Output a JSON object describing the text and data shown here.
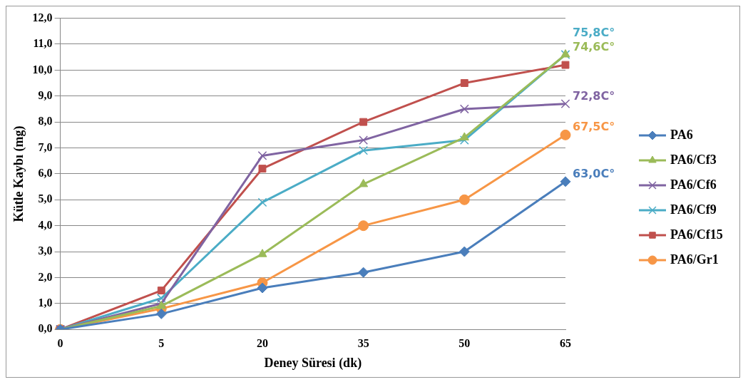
{
  "chart_data": {
    "type": "line",
    "xlabel": "Deney Süresi (dk)",
    "ylabel": "Kütle Kaybı (mg)",
    "categories": [
      "0",
      "5",
      "20",
      "35",
      "50",
      "65"
    ],
    "ylim": [
      0,
      12
    ],
    "yticks": [
      {
        "value": 0,
        "label": "0,0"
      },
      {
        "value": 1,
        "label": "1,0"
      },
      {
        "value": 2,
        "label": "2,0"
      },
      {
        "value": 3,
        "label": "3,0"
      },
      {
        "value": 4,
        "label": "4,0"
      },
      {
        "value": 5,
        "label": "5,0"
      },
      {
        "value": 6,
        "label": "6,0"
      },
      {
        "value": 7,
        "label": "7,0"
      },
      {
        "value": 8,
        "label": "8,0"
      },
      {
        "value": 9,
        "label": "9,0"
      },
      {
        "value": 10,
        "label": "10,0"
      },
      {
        "value": 11,
        "label": "11,0"
      },
      {
        "value": 12,
        "label": "12,0"
      }
    ],
    "grid": "y",
    "legend": "right",
    "line_style": "solid",
    "series": [
      {
        "name": "PA6",
        "color": "#4a7ebb",
        "marker": "diamond",
        "values": [
          0,
          0.6,
          1.6,
          2.2,
          3.0,
          5.7
        ]
      },
      {
        "name": "PA6/Cf3",
        "color": "#9bbb59",
        "marker": "triangle",
        "values": [
          0,
          0.9,
          2.9,
          5.6,
          7.4,
          10.6
        ]
      },
      {
        "name": "PA6/Cf6",
        "color": "#8064a2",
        "marker": "cross",
        "values": [
          0,
          1.0,
          6.7,
          7.3,
          8.5,
          8.7
        ]
      },
      {
        "name": "PA6/Cf9",
        "color": "#4bacc6",
        "marker": "cross",
        "values": [
          0,
          1.2,
          4.9,
          6.9,
          7.3,
          10.6
        ]
      },
      {
        "name": "PA6/Cf15",
        "color": "#c0504d",
        "marker": "square",
        "values": [
          0,
          1.5,
          6.2,
          8.0,
          9.5,
          10.2
        ]
      },
      {
        "name": "PA6/Gr1",
        "color": "#f79646",
        "marker": "circle",
        "values": [
          0,
          0.8,
          1.8,
          4.0,
          5.0,
          7.5
        ]
      }
    ],
    "annotations": [
      {
        "text": "63,0C°",
        "x": "65",
        "y": 5.7
      },
      {
        "text": "74,6C°",
        "x": "65",
        "y": 10.6
      },
      {
        "text": "72,8C°",
        "x": "65",
        "y": 8.7
      },
      {
        "text": "75,8C°",
        "x": "65",
        "y": 10.6
      },
      {
        "text": "67,5C°",
        "x": "65",
        "y": 7.5
      }
    ]
  }
}
